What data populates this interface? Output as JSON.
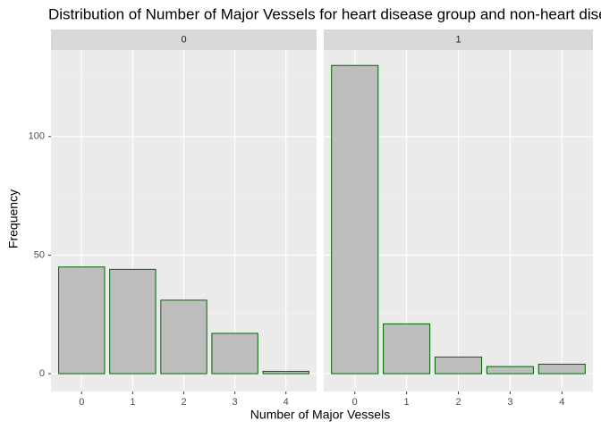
{
  "title": "Distribution of Number of Major Vessels for heart disease group and non-heart disease group",
  "x_label": "Number of Major Vessels",
  "y_label": "Frequency",
  "chart_data": [
    {
      "type": "bar",
      "title": "0",
      "categories": [
        "0",
        "1",
        "2",
        "3",
        "4"
      ],
      "values": [
        45,
        44,
        31,
        17,
        1
      ],
      "color": "#bebebe",
      "edge_color": "#006400",
      "ylim": [
        -7.5,
        136.5
      ],
      "yticks": [
        0,
        50,
        100
      ],
      "grid": true
    },
    {
      "type": "bar",
      "title": "1",
      "categories": [
        "0",
        "1",
        "2",
        "3",
        "4"
      ],
      "values": [
        130,
        21,
        7,
        3,
        4
      ],
      "color": "#bebebe",
      "edge_color": "#006400",
      "ylim": [
        -7.5,
        136.5
      ],
      "yticks": [
        0,
        50,
        100
      ],
      "grid": true
    }
  ]
}
